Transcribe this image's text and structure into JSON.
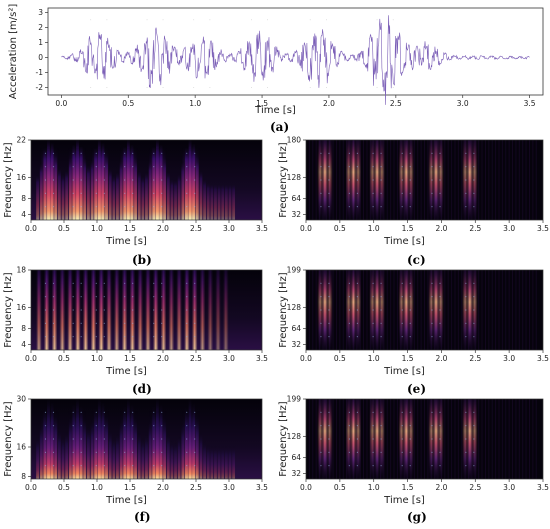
{
  "chart_data": [
    {
      "id": "a",
      "type": "line",
      "panel_label": "(a)",
      "xlabel": "Time [s]",
      "ylabel": "Acceleration [m/s²]",
      "xlim": [
        -0.1,
        3.6
      ],
      "ylim": [
        -2.5,
        3.3
      ],
      "xticks": [
        "0.0",
        "0.5",
        "1.0",
        "1.5",
        "2.0",
        "2.5",
        "3.0",
        "3.5"
      ],
      "yticks": [
        "-2",
        "-1",
        "0",
        "1",
        "2",
        "3"
      ],
      "color": "#7b5fb7",
      "bursts": [
        {
          "t": 0.28,
          "amp": 1.9
        },
        {
          "t": 0.7,
          "amp": 2.2
        },
        {
          "t": 1.05,
          "amp": 1.6
        },
        {
          "t": 1.48,
          "amp": 1.8
        },
        {
          "t": 1.92,
          "amp": 2.2
        },
        {
          "t": 2.42,
          "amp": 3.1
        },
        {
          "t": 2.72,
          "amp": 1.0
        }
      ]
    },
    {
      "id": "b",
      "type": "heatmap",
      "panel_label": "(b)",
      "xlabel": "Time [s]",
      "ylabel": "Frequency [Hz]",
      "yticks": [
        "4",
        "8",
        "16",
        "22"
      ],
      "xticks": [
        "0.0",
        "0.5",
        "1.0",
        "1.5",
        "2.0",
        "2.5",
        "3.0",
        "3.5"
      ],
      "xlim": [
        0,
        3.5
      ],
      "colormap": "magma",
      "pattern": "low"
    },
    {
      "id": "c",
      "type": "heatmap",
      "panel_label": "(c)",
      "xlabel": "Time [s]",
      "ylabel": "Frequency [Hz]",
      "yticks": [
        "32",
        "64",
        "128",
        "180"
      ],
      "xticks": [
        "0.0",
        "0.5",
        "1.0",
        "1.5",
        "2.0",
        "2.5",
        "3.0",
        "3.5"
      ],
      "xlim": [
        0,
        3.5
      ],
      "colormap": "magma",
      "pattern": "high"
    },
    {
      "id": "d",
      "type": "heatmap",
      "panel_label": "(d)",
      "xlabel": "Time [s]",
      "ylabel": "Frequency [Hz]",
      "yticks": [
        "4",
        "8",
        "16",
        "18"
      ],
      "xticks": [
        "0.0",
        "0.5",
        "1.0",
        "1.5",
        "2.0",
        "2.5",
        "3.0",
        "3.5"
      ],
      "xlim": [
        0,
        3.5
      ],
      "colormap": "magma",
      "pattern": "stripes"
    },
    {
      "id": "e",
      "type": "heatmap",
      "panel_label": "(e)",
      "xlabel": "Time [s]",
      "ylabel": "Frequency [Hz]",
      "yticks": [
        "32",
        "64",
        "128",
        "199"
      ],
      "xticks": [
        "0.0",
        "0.5",
        "1.0",
        "1.5",
        "2.0",
        "2.5",
        "3.0",
        "3.5"
      ],
      "xlim": [
        0,
        3.5
      ],
      "colormap": "magma",
      "pattern": "high"
    },
    {
      "id": "f",
      "type": "heatmap",
      "panel_label": "(f)",
      "xlabel": "Time [s]",
      "ylabel": "Frequency [Hz]",
      "yticks": [
        "8",
        "16",
        "30"
      ],
      "xticks": [
        "0.0",
        "0.5",
        "1.0",
        "1.5",
        "2.0",
        "2.5",
        "3.0",
        "3.5"
      ],
      "xlim": [
        0,
        3.5
      ],
      "colormap": "magma",
      "pattern": "bottom"
    },
    {
      "id": "g",
      "type": "heatmap",
      "panel_label": "(g)",
      "xlabel": "Time [s]",
      "ylabel": "Frequency [Hz]",
      "yticks": [
        "32",
        "64",
        "128",
        "199"
      ],
      "xticks": [
        "0.0",
        "0.5",
        "1.0",
        "1.5",
        "2.0",
        "2.5",
        "3.0",
        "3.5"
      ],
      "xlim": [
        0,
        3.5
      ],
      "colormap": "magma",
      "pattern": "high"
    }
  ],
  "event_times_s": [
    0.28,
    0.7,
    1.05,
    1.48,
    1.92,
    2.42
  ]
}
